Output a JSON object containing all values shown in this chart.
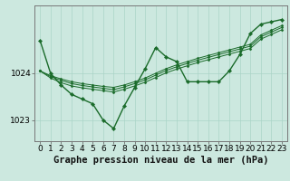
{
  "title": "Graphe pression niveau de la mer (hPa)",
  "bg_color": "#cce8df",
  "grid_color": "#aad4c8",
  "line_color": "#1a6b2a",
  "ylim": [
    1022.55,
    1025.45
  ],
  "yticks": [
    1023,
    1024
  ],
  "xlim": [
    -0.5,
    23.5
  ],
  "xticks": [
    0,
    1,
    2,
    3,
    4,
    5,
    6,
    7,
    8,
    9,
    10,
    11,
    12,
    13,
    14,
    15,
    16,
    17,
    18,
    19,
    20,
    21,
    22,
    23
  ],
  "main_y": [
    1024.7,
    1024.0,
    1023.75,
    1023.55,
    1023.45,
    1023.35,
    1023.0,
    1022.82,
    1023.3,
    1023.7,
    1024.1,
    1024.55,
    1024.35,
    1024.25,
    1023.82,
    1023.82,
    1023.82,
    1023.82,
    1024.05,
    1024.4,
    1024.85,
    1025.05,
    1025.1,
    1025.15
  ],
  "trend1_y": [
    1024.05,
    1023.95,
    1023.88,
    1023.82,
    1023.78,
    1023.75,
    1023.72,
    1023.7,
    1023.75,
    1023.82,
    1023.9,
    1024.0,
    1024.1,
    1024.18,
    1024.25,
    1024.32,
    1024.38,
    1024.44,
    1024.5,
    1024.56,
    1024.62,
    1024.82,
    1024.92,
    1025.02
  ],
  "trend2_y": [
    1024.05,
    1023.93,
    1023.85,
    1023.78,
    1023.74,
    1023.71,
    1023.68,
    1023.65,
    1023.71,
    1023.78,
    1023.86,
    1023.96,
    1024.06,
    1024.14,
    1024.21,
    1024.28,
    1024.34,
    1024.4,
    1024.46,
    1024.52,
    1024.58,
    1024.78,
    1024.88,
    1024.98
  ],
  "trend3_y": [
    1024.05,
    1023.9,
    1023.8,
    1023.73,
    1023.69,
    1023.66,
    1023.63,
    1023.6,
    1023.66,
    1023.73,
    1023.81,
    1023.91,
    1024.01,
    1024.09,
    1024.16,
    1024.23,
    1024.29,
    1024.35,
    1024.41,
    1024.47,
    1024.53,
    1024.73,
    1024.83,
    1024.93
  ],
  "xlabel_fontsize": 7.5,
  "tick_fontsize": 6.5
}
